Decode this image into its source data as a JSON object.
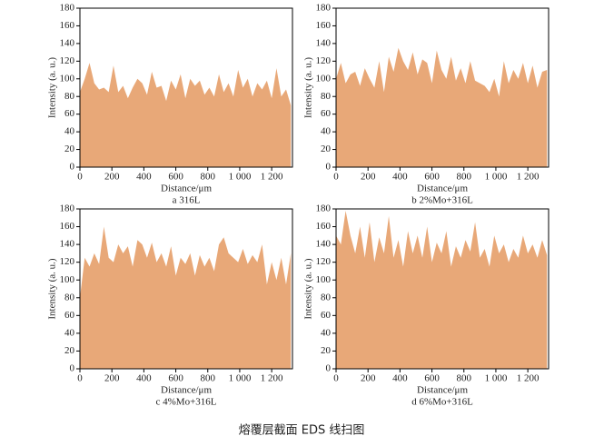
{
  "title": "熔覆层截面 EDS 线扫图",
  "chart_data": [
    {
      "type": "area",
      "caption": "a  316L",
      "xlabel": "Distance/μm",
      "ylabel": "Intensity (a. u.)",
      "color": "#e8a878",
      "x": [
        0,
        30,
        60,
        90,
        120,
        150,
        180,
        210,
        240,
        270,
        300,
        330,
        360,
        390,
        420,
        450,
        480,
        510,
        540,
        570,
        600,
        630,
        660,
        690,
        720,
        750,
        780,
        810,
        840,
        870,
        900,
        930,
        960,
        990,
        1020,
        1050,
        1080,
        1110,
        1140,
        1170,
        1200,
        1230,
        1260,
        1290,
        1320
      ],
      "values": [
        85,
        100,
        118,
        95,
        88,
        90,
        85,
        115,
        85,
        92,
        78,
        90,
        100,
        95,
        82,
        108,
        90,
        92,
        75,
        98,
        88,
        105,
        78,
        100,
        92,
        98,
        82,
        90,
        80,
        105,
        85,
        95,
        80,
        110,
        90,
        100,
        80,
        95,
        88,
        98,
        78,
        112,
        80,
        88,
        70
      ],
      "xlim": [
        0,
        1330
      ],
      "ylim": [
        0,
        180
      ],
      "xticks": [
        0,
        200,
        400,
        600,
        800,
        {
          "value": 1000,
          "label": "1 000"
        },
        {
          "value": 1200,
          "label": "1 200"
        }
      ],
      "yticks": [
        0,
        20,
        40,
        60,
        80,
        100,
        120,
        140,
        160,
        180
      ]
    },
    {
      "type": "area",
      "caption": "b  2%Mo+316L",
      "xlabel": "Distance/μm",
      "ylabel": "Intensity (a. u.)",
      "color": "#e8a878",
      "x": [
        0,
        30,
        60,
        90,
        120,
        150,
        180,
        210,
        240,
        270,
        300,
        330,
        360,
        390,
        420,
        450,
        480,
        510,
        540,
        570,
        600,
        630,
        660,
        690,
        720,
        750,
        780,
        810,
        840,
        870,
        900,
        930,
        960,
        990,
        1020,
        1050,
        1080,
        1110,
        1140,
        1170,
        1200,
        1230,
        1260,
        1290,
        1320
      ],
      "values": [
        100,
        118,
        95,
        105,
        108,
        92,
        112,
        100,
        90,
        120,
        85,
        125,
        108,
        135,
        120,
        110,
        130,
        105,
        122,
        118,
        95,
        132,
        110,
        100,
        125,
        98,
        112,
        95,
        120,
        98,
        95,
        92,
        85,
        100,
        80,
        120,
        95,
        110,
        100,
        118,
        95,
        115,
        90,
        108,
        110
      ],
      "xlim": [
        0,
        1330
      ],
      "ylim": [
        0,
        180
      ],
      "xticks": [
        0,
        200,
        400,
        600,
        800,
        {
          "value": 1000,
          "label": "1 000"
        },
        {
          "value": 1200,
          "label": "1 200"
        }
      ],
      "yticks": [
        0,
        20,
        40,
        60,
        80,
        100,
        120,
        140,
        160,
        180
      ]
    },
    {
      "type": "area",
      "caption": "c  4%Mo+316L",
      "xlabel": "Distance/μm",
      "ylabel": "Intensity (a. u.)",
      "color": "#e8a878",
      "x": [
        0,
        30,
        60,
        90,
        120,
        150,
        180,
        210,
        240,
        270,
        300,
        330,
        360,
        390,
        420,
        450,
        480,
        510,
        540,
        570,
        600,
        630,
        660,
        690,
        720,
        750,
        780,
        810,
        840,
        870,
        900,
        930,
        960,
        990,
        1020,
        1050,
        1080,
        1110,
        1140,
        1170,
        1200,
        1230,
        1260,
        1290,
        1320
      ],
      "values": [
        80,
        125,
        115,
        130,
        118,
        160,
        125,
        120,
        140,
        130,
        138,
        115,
        145,
        140,
        125,
        142,
        120,
        130,
        115,
        138,
        105,
        125,
        118,
        130,
        105,
        128,
        115,
        125,
        110,
        140,
        148,
        130,
        125,
        120,
        135,
        118,
        128,
        120,
        140,
        95,
        120,
        100,
        125,
        95,
        130
      ],
      "xlim": [
        0,
        1330
      ],
      "ylim": [
        0,
        180
      ],
      "xticks": [
        0,
        200,
        400,
        600,
        800,
        {
          "value": 1000,
          "label": "1 000"
        },
        {
          "value": 1200,
          "label": "1 200"
        }
      ],
      "yticks": [
        0,
        20,
        40,
        60,
        80,
        100,
        120,
        140,
        160,
        180
      ]
    },
    {
      "type": "area",
      "caption": "d  6%Mo+316L",
      "xlabel": "Distance/μm",
      "ylabel": "Intensity (a. u.)",
      "color": "#e8a878",
      "x": [
        0,
        30,
        60,
        90,
        120,
        150,
        180,
        210,
        240,
        270,
        300,
        330,
        360,
        390,
        420,
        450,
        480,
        510,
        540,
        570,
        600,
        630,
        660,
        690,
        720,
        750,
        780,
        810,
        840,
        870,
        900,
        930,
        960,
        990,
        1020,
        1050,
        1080,
        1110,
        1140,
        1170,
        1200,
        1230,
        1260,
        1290,
        1320
      ],
      "values": [
        150,
        140,
        178,
        150,
        130,
        160,
        125,
        165,
        120,
        148,
        130,
        172,
        125,
        145,
        115,
        155,
        130,
        150,
        125,
        160,
        120,
        142,
        130,
        155,
        115,
        138,
        125,
        145,
        132,
        165,
        125,
        135,
        115,
        150,
        130,
        140,
        120,
        135,
        125,
        150,
        130,
        140,
        125,
        145,
        128
      ],
      "xlim": [
        0,
        1330
      ],
      "ylim": [
        0,
        180
      ],
      "xticks": [
        0,
        200,
        400,
        600,
        800,
        {
          "value": 1000,
          "label": "1 000"
        },
        {
          "value": 1200,
          "label": "1 200"
        }
      ],
      "yticks": [
        0,
        20,
        40,
        60,
        80,
        100,
        120,
        140,
        160,
        180
      ]
    }
  ]
}
